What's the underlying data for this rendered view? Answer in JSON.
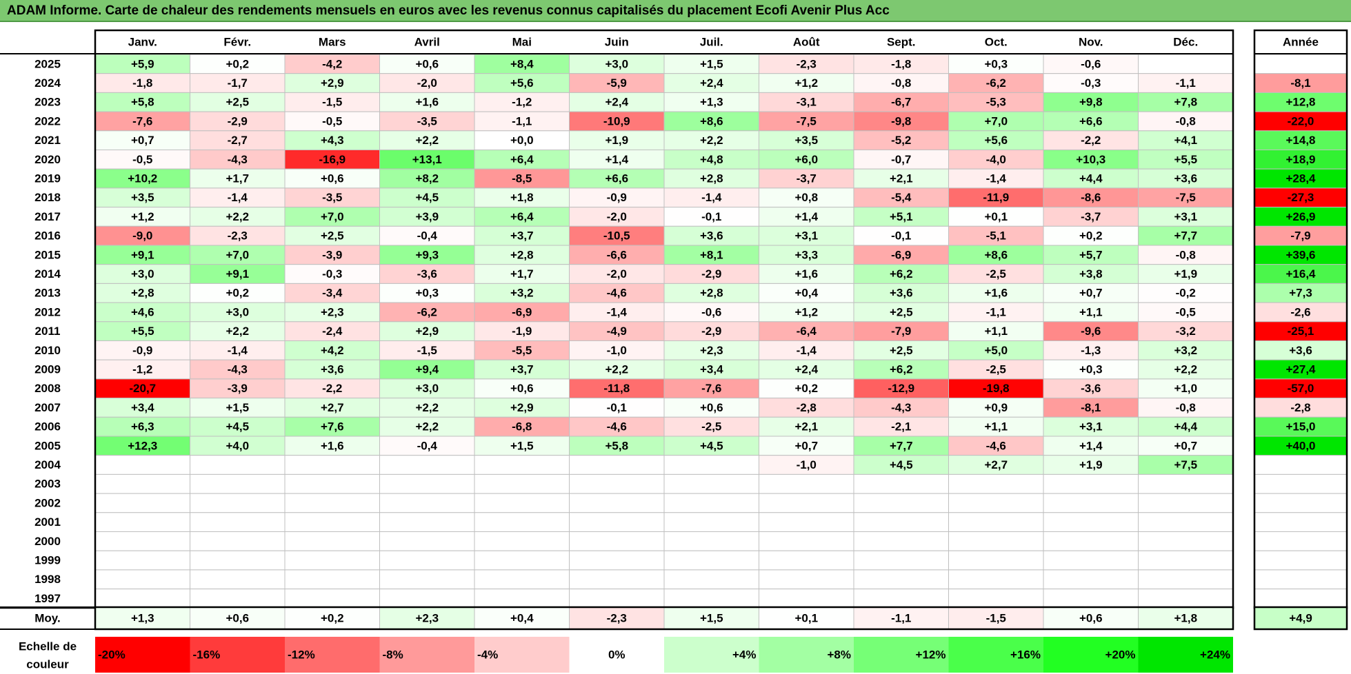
{
  "title": "ADAM Informe. Carte de chaleur des rendements mensuels en euros avec les revenus connus capitalisés du placement Ecofi Avenir Plus Acc",
  "chart_data": {
    "type": "heatmap",
    "months": [
      "Janv.",
      "Févr.",
      "Mars",
      "Avril",
      "Mai",
      "Juin",
      "Juil.",
      "Août",
      "Sept.",
      "Oct.",
      "Nov.",
      "Déc."
    ],
    "year_header": "Année",
    "rows": [
      {
        "year": "2025",
        "m": [
          "+5,9",
          "+0,2",
          "-4,2",
          "+0,6",
          "+8,4",
          "+3,0",
          "+1,5",
          "-2,3",
          "-1,8",
          "+0,3",
          "-0,6",
          ""
        ],
        "y": ""
      },
      {
        "year": "2024",
        "m": [
          "-1,8",
          "-1,7",
          "+2,9",
          "-2,0",
          "+5,6",
          "-5,9",
          "+2,4",
          "+1,2",
          "-0,8",
          "-6,2",
          "-0,3",
          "-1,1"
        ],
        "y": "-8,1"
      },
      {
        "year": "2023",
        "m": [
          "+5,8",
          "+2,5",
          "-1,5",
          "+1,6",
          "-1,2",
          "+2,4",
          "+1,3",
          "-3,1",
          "-6,7",
          "-5,3",
          "+9,8",
          "+7,8"
        ],
        "y": "+12,8"
      },
      {
        "year": "2022",
        "m": [
          "-7,6",
          "-2,9",
          "-0,5",
          "-3,5",
          "-1,1",
          "-10,9",
          "+8,6",
          "-7,5",
          "-9,8",
          "+7,0",
          "+6,6",
          "-0,8"
        ],
        "y": "-22,0"
      },
      {
        "year": "2021",
        "m": [
          "+0,7",
          "-2,7",
          "+4,3",
          "+2,2",
          "+0,0",
          "+1,9",
          "+2,2",
          "+3,5",
          "-5,2",
          "+5,6",
          "-2,2",
          "+4,1"
        ],
        "y": "+14,8"
      },
      {
        "year": "2020",
        "m": [
          "-0,5",
          "-4,3",
          "-16,9",
          "+13,1",
          "+6,4",
          "+1,4",
          "+4,8",
          "+6,0",
          "-0,7",
          "-4,0",
          "+10,3",
          "+5,5"
        ],
        "y": "+18,9"
      },
      {
        "year": "2019",
        "m": [
          "+10,2",
          "+1,7",
          "+0,6",
          "+8,2",
          "-8,5",
          "+6,6",
          "+2,8",
          "-3,7",
          "+2,1",
          "-1,4",
          "+4,4",
          "+3,6"
        ],
        "y": "+28,4"
      },
      {
        "year": "2018",
        "m": [
          "+3,5",
          "-1,4",
          "-3,5",
          "+4,5",
          "+1,8",
          "-0,9",
          "-1,4",
          "+0,8",
          "-5,4",
          "-11,9",
          "-8,6",
          "-7,5"
        ],
        "y": "-27,3"
      },
      {
        "year": "2017",
        "m": [
          "+1,2",
          "+2,2",
          "+7,0",
          "+3,9",
          "+6,4",
          "-2,0",
          "-0,1",
          "+1,4",
          "+5,1",
          "+0,1",
          "-3,7",
          "+3,1"
        ],
        "y": "+26,9"
      },
      {
        "year": "2016",
        "m": [
          "-9,0",
          "-2,3",
          "+2,5",
          "-0,4",
          "+3,7",
          "-10,5",
          "+3,6",
          "+3,1",
          "-0,1",
          "-5,1",
          "+0,2",
          "+7,7"
        ],
        "y": "-7,9"
      },
      {
        "year": "2015",
        "m": [
          "+9,1",
          "+7,0",
          "-3,9",
          "+9,3",
          "+2,8",
          "-6,6",
          "+8,1",
          "+3,3",
          "-6,9",
          "+8,6",
          "+5,7",
          "-0,8"
        ],
        "y": "+39,6"
      },
      {
        "year": "2014",
        "m": [
          "+3,0",
          "+9,1",
          "-0,3",
          "-3,6",
          "+1,7",
          "-2,0",
          "-2,9",
          "+1,6",
          "+6,2",
          "-2,5",
          "+3,8",
          "+1,9"
        ],
        "y": "+16,4"
      },
      {
        "year": "2013",
        "m": [
          "+2,8",
          "+0,2",
          "-3,4",
          "+0,3",
          "+3,2",
          "-4,6",
          "+2,8",
          "+0,4",
          "+3,6",
          "+1,6",
          "+0,7",
          "-0,2"
        ],
        "y": "+7,3"
      },
      {
        "year": "2012",
        "m": [
          "+4,6",
          "+3,0",
          "+2,3",
          "-6,2",
          "-6,9",
          "-1,4",
          "-0,6",
          "+1,2",
          "+2,5",
          "-1,1",
          "+1,1",
          "-0,5"
        ],
        "y": "-2,6"
      },
      {
        "year": "2011",
        "m": [
          "+5,5",
          "+2,2",
          "-2,4",
          "+2,9",
          "-1,9",
          "-4,9",
          "-2,9",
          "-6,4",
          "-7,9",
          "+1,1",
          "-9,6",
          "-3,2"
        ],
        "y": "-25,1"
      },
      {
        "year": "2010",
        "m": [
          "-0,9",
          "-1,4",
          "+4,2",
          "-1,5",
          "-5,5",
          "-1,0",
          "+2,3",
          "-1,4",
          "+2,5",
          "+5,0",
          "-1,3",
          "+3,2"
        ],
        "y": "+3,6"
      },
      {
        "year": "2009",
        "m": [
          "-1,2",
          "-4,3",
          "+3,6",
          "+9,4",
          "+3,7",
          "+2,2",
          "+3,4",
          "+2,4",
          "+6,2",
          "-2,5",
          "+0,3",
          "+2,2"
        ],
        "y": "+27,4"
      },
      {
        "year": "2008",
        "m": [
          "-20,7",
          "-3,9",
          "-2,2",
          "+3,0",
          "+0,6",
          "-11,8",
          "-7,6",
          "+0,2",
          "-12,9",
          "-19,8",
          "-3,6",
          "+1,0"
        ],
        "y": "-57,0"
      },
      {
        "year": "2007",
        "m": [
          "+3,4",
          "+1,5",
          "+2,7",
          "+2,2",
          "+2,9",
          "-0,1",
          "+0,6",
          "-2,8",
          "-4,3",
          "+0,9",
          "-8,1",
          "-0,8"
        ],
        "y": "-2,8"
      },
      {
        "year": "2006",
        "m": [
          "+6,3",
          "+4,5",
          "+7,6",
          "+2,2",
          "-6,8",
          "-4,6",
          "-2,5",
          "+2,1",
          "-2,1",
          "+1,1",
          "+3,1",
          "+4,4"
        ],
        "y": "+15,0"
      },
      {
        "year": "2005",
        "m": [
          "+12,3",
          "+4,0",
          "+1,6",
          "-0,4",
          "+1,5",
          "+5,8",
          "+4,5",
          "+0,7",
          "+7,7",
          "-4,6",
          "+1,4",
          "+0,7"
        ],
        "y": "+40,0"
      },
      {
        "year": "2004",
        "m": [
          "",
          "",
          "",
          "",
          "",
          "",
          "",
          "-1,0",
          "+4,5",
          "+2,7",
          "+1,9",
          "+7,5"
        ],
        "y": ""
      },
      {
        "year": "2003",
        "m": [
          "",
          "",
          "",
          "",
          "",
          "",
          "",
          "",
          "",
          "",
          "",
          ""
        ],
        "y": ""
      },
      {
        "year": "2002",
        "m": [
          "",
          "",
          "",
          "",
          "",
          "",
          "",
          "",
          "",
          "",
          "",
          ""
        ],
        "y": ""
      },
      {
        "year": "2001",
        "m": [
          "",
          "",
          "",
          "",
          "",
          "",
          "",
          "",
          "",
          "",
          "",
          ""
        ],
        "y": ""
      },
      {
        "year": "2000",
        "m": [
          "",
          "",
          "",
          "",
          "",
          "",
          "",
          "",
          "",
          "",
          "",
          ""
        ],
        "y": ""
      },
      {
        "year": "1999",
        "m": [
          "",
          "",
          "",
          "",
          "",
          "",
          "",
          "",
          "",
          "",
          "",
          ""
        ],
        "y": ""
      },
      {
        "year": "1998",
        "m": [
          "",
          "",
          "",
          "",
          "",
          "",
          "",
          "",
          "",
          "",
          "",
          ""
        ],
        "y": ""
      },
      {
        "year": "1997",
        "m": [
          "",
          "",
          "",
          "",
          "",
          "",
          "",
          "",
          "",
          "",
          "",
          ""
        ],
        "y": ""
      }
    ],
    "average": {
      "label": "Moy.",
      "m": [
        "+1,3",
        "+0,6",
        "+0,2",
        "+2,3",
        "+0,4",
        "-2,3",
        "+1,5",
        "+0,1",
        "-1,1",
        "-1,5",
        "+0,6",
        "+1,8"
      ],
      "y": "+4,9"
    },
    "scale": {
      "label_line1": "Echelle de",
      "label_line2": "couleur",
      "stops": [
        {
          "label": "-20%",
          "v": -20,
          "color": "#ff0000"
        },
        {
          "label": "-16%",
          "v": -16,
          "color": "#ff3b3b"
        },
        {
          "label": "-12%",
          "v": -12,
          "color": "#ff6c6c"
        },
        {
          "label": "-8%",
          "v": -8,
          "color": "#ff9a9a"
        },
        {
          "label": "-4%",
          "v": -4,
          "color": "#ffcccc"
        },
        {
          "label": "0%",
          "v": 0,
          "color": "#ffffff"
        },
        {
          "label": "+4%",
          "v": 4,
          "color": "#ccffcc"
        },
        {
          "label": "+8%",
          "v": 8,
          "color": "#a3ffa3"
        },
        {
          "label": "+12%",
          "v": 12,
          "color": "#76ff76"
        },
        {
          "label": "+16%",
          "v": 16,
          "color": "#4aff4a"
        },
        {
          "label": "+20%",
          "v": 20,
          "color": "#22ff22"
        },
        {
          "label": "+24%",
          "v": 24,
          "color": "#00e600"
        }
      ]
    }
  }
}
